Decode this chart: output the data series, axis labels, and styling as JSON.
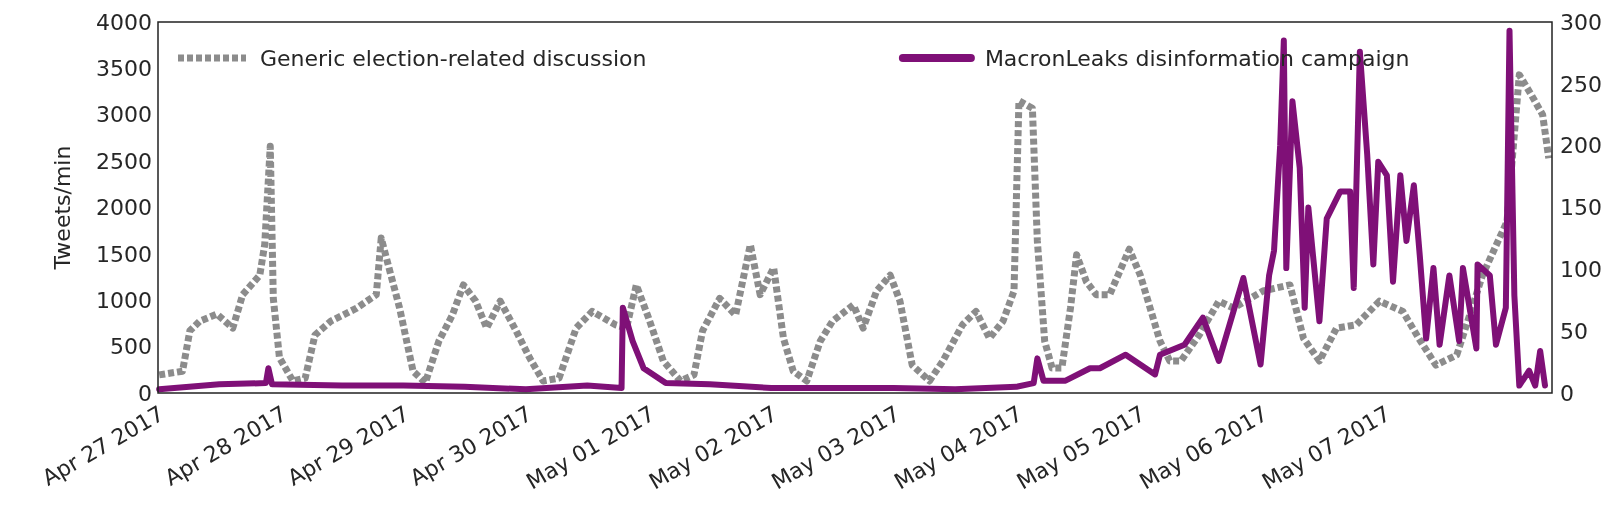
{
  "chart_data": {
    "type": "line",
    "ylabel": "Tweets/min",
    "legend": "top",
    "grid": false,
    "xlim": [
      "2017-04-27T00:00",
      "2017-05-08T08:48"
    ],
    "xticks": [
      {
        "value": "2017-04-27",
        "label": "Apr 27 2017"
      },
      {
        "value": "2017-04-28",
        "label": "Apr 28 2017"
      },
      {
        "value": "2017-04-29",
        "label": "Apr 29 2017"
      },
      {
        "value": "2017-04-30",
        "label": "Apr 30 2017"
      },
      {
        "value": "2017-05-01",
        "label": "May 01 2017"
      },
      {
        "value": "2017-05-02",
        "label": "May 02 2017"
      },
      {
        "value": "2017-05-03",
        "label": "May 03 2017"
      },
      {
        "value": "2017-05-04",
        "label": "May 04 2017"
      },
      {
        "value": "2017-05-05",
        "label": "May 05 2017"
      },
      {
        "value": "2017-05-06",
        "label": "May 06 2017"
      },
      {
        "value": "2017-05-07",
        "label": "May 07 2017"
      }
    ],
    "ylim": [
      0,
      4000
    ],
    "yticks": [
      0,
      500,
      1000,
      1500,
      2000,
      2500,
      3000,
      3500,
      4000
    ],
    "y2lim": [
      0,
      300
    ],
    "y2ticks": [
      0,
      50,
      100,
      150,
      200,
      250,
      300
    ],
    "series": [
      {
        "name": "Generic election-related discussion",
        "color": "#8c8c8c",
        "line_style": "dotted",
        "x": [
          "2017-04-27T00:14",
          "2017-04-27T04:48",
          "2017-04-27T06:14",
          "2017-04-27T08:10",
          "2017-04-27T11:31",
          "2017-04-27T14:38",
          "2017-04-27T16:34",
          "2017-04-27T19:55",
          "2017-04-27T20:53",
          "2017-04-27T21:58",
          "2017-04-27T22:34",
          "2017-04-27T23:46",
          "2017-04-28T02:24",
          "2017-04-28T04:48",
          "2017-04-28T06:43",
          "2017-04-28T09:50",
          "2017-04-28T14:53",
          "2017-04-28T18:43",
          "2017-04-28T19:41",
          "2017-04-28T21:22",
          "2017-04-28T23:17",
          "2017-04-29T01:55",
          "2017-04-29T04:19",
          "2017-04-29T06:58",
          "2017-04-29T09:36",
          "2017-04-29T11:46",
          "2017-04-29T14:10",
          "2017-04-29T16:19",
          "2017-04-29T18:58",
          "2017-04-29T22:05",
          "2017-04-30T00:43",
          "2017-04-30T03:22",
          "2017-04-30T06:29",
          "2017-04-30T09:50",
          "2017-04-30T12:58",
          "2017-04-30T17:31",
          "2017-04-30T19:41",
          "2017-04-30T21:36",
          "2017-05-01T00:00",
          "2017-05-01T02:53",
          "2017-05-01T06:14",
          "2017-05-01T08:53",
          "2017-05-01T10:34",
          "2017-05-01T13:55",
          "2017-05-01T17:02",
          "2017-05-01T19:55",
          "2017-05-01T21:50",
          "2017-05-02T00:29",
          "2017-05-02T02:24",
          "2017-05-02T04:19",
          "2017-05-02T06:58",
          "2017-05-02T09:36",
          "2017-05-02T12:00",
          "2017-05-02T16:05",
          "2017-05-02T18:00",
          "2017-05-02T20:38",
          "2017-05-02T23:17",
          "2017-05-03T01:12",
          "2017-05-03T03:36",
          "2017-05-03T06:58",
          "2017-05-03T09:36",
          "2017-05-03T13:26",
          "2017-05-03T16:05",
          "2017-05-03T18:43",
          "2017-05-03T21:22",
          "2017-05-03T23:31",
          "2017-05-04T00:29",
          "2017-05-04T03:07",
          "2017-05-04T04:05",
          "2017-05-04T05:31",
          "2017-05-04T06:58",
          "2017-05-04T08:53",
          "2017-05-04T10:34",
          "2017-05-04T11:46",
          "2017-05-04T13:41",
          "2017-05-04T15:36",
          "2017-05-04T18:14",
          "2017-05-04T22:05",
          "2017-05-05T00:14",
          "2017-05-05T04:05",
          "2017-05-05T06:00",
          "2017-05-05T08:10",
          "2017-05-05T11:46",
          "2017-05-05T15:36",
          "2017-05-05T18:29",
          "2017-05-06T00:14",
          "2017-05-06T05:31",
          "2017-05-06T08:10",
          "2017-05-06T11:17",
          "2017-05-06T14:38",
          "2017-05-06T18:29",
          "2017-05-06T23:02",
          "2017-05-07T03:36",
          "2017-05-07T06:43",
          "2017-05-07T10:05",
          "2017-05-07T14:10",
          "2017-05-07T19:12",
          "2017-05-08T00:00",
          "2017-05-08T02:24",
          "2017-05-08T04:48",
          "2017-05-08T06:58",
          "2017-05-08T08:10"
        ],
        "values": [
          195,
          235,
          670,
          775,
          850,
          700,
          1060,
          1270,
          1600,
          2660,
          1020,
          380,
          130,
          160,
          625,
          775,
          915,
          1060,
          1670,
          1315,
          915,
          235,
          110,
          560,
          840,
          1165,
          990,
          700,
          990,
          670,
          380,
          130,
          160,
          700,
          880,
          735,
          700,
          1165,
          810,
          345,
          130,
          195,
          670,
          1020,
          840,
          1600,
          1060,
          1350,
          590,
          235,
          130,
          560,
          775,
          950,
          700,
          1100,
          1270,
          990,
          300,
          130,
          345,
          735,
          880,
          590,
          775,
          1100,
          3150,
          3070,
          1640,
          560,
          270,
          270,
          915,
          1490,
          1200,
          1060,
          1060,
          1550,
          1270,
          560,
          345,
          345,
          625,
          990,
          915,
          1100,
          1165,
          590,
          345,
          700,
          735,
          990,
          880,
          590,
          300,
          410,
          1270,
          1850,
          3430,
          3210,
          3000,
          2530
        ]
      },
      {
        "name": "MacronLeaks disinformation campaign",
        "color": "#7f1077",
        "line_style": "solid",
        "axis": "y2",
        "x": [
          "2017-04-27T00:14",
          "2017-04-27T12:00",
          "2017-04-27T21:07",
          "2017-04-27T21:36",
          "2017-04-27T22:19",
          "2017-04-28T12:00",
          "2017-04-29T00:00",
          "2017-04-29T12:00",
          "2017-04-30T00:00",
          "2017-04-30T12:00",
          "2017-04-30T18:43",
          "2017-04-30T18:58",
          "2017-04-30T20:53",
          "2017-04-30T23:02",
          "2017-05-01T03:22",
          "2017-05-01T12:00",
          "2017-05-02T00:00",
          "2017-05-02T12:00",
          "2017-05-03T00:00",
          "2017-05-03T12:00",
          "2017-05-04T00:00",
          "2017-05-04T03:22",
          "2017-05-04T04:05",
          "2017-05-04T05:17",
          "2017-05-04T09:36",
          "2017-05-04T14:24",
          "2017-05-04T16:19",
          "2017-05-04T21:22",
          "2017-05-05T03:07",
          "2017-05-05T04:05",
          "2017-05-05T08:53",
          "2017-05-05T12:29",
          "2017-05-05T15:36",
          "2017-05-05T20:24",
          "2017-05-05T23:46",
          "2017-05-06T01:26",
          "2017-05-06T02:24",
          "2017-05-06T03:36",
          "2017-05-06T04:19",
          "2017-05-06T04:48",
          "2017-05-06T06:00",
          "2017-05-06T07:26",
          "2017-05-06T08:24",
          "2017-05-06T09:07",
          "2017-05-06T11:17",
          "2017-05-06T12:43",
          "2017-05-06T15:22",
          "2017-05-06T17:17",
          "2017-05-06T18:00",
          "2017-05-06T19:12",
          "2017-05-06T20:38",
          "2017-05-06T21:50",
          "2017-05-06T22:48",
          "2017-05-07T00:29",
          "2017-05-07T01:41",
          "2017-05-07T03:07",
          "2017-05-07T04:19",
          "2017-05-07T05:46",
          "2017-05-07T06:58",
          "2017-05-07T08:10",
          "2017-05-07T09:36",
          "2017-05-07T10:48",
          "2017-05-07T12:43",
          "2017-05-07T14:38",
          "2017-05-07T15:22",
          "2017-05-07T18:00",
          "2017-05-07T18:14",
          "2017-05-07T20:38",
          "2017-05-07T21:50",
          "2017-05-07T23:46",
          "2017-05-08T00:29",
          "2017-05-08T01:26",
          "2017-05-08T02:24",
          "2017-05-08T04:19",
          "2017-05-08T05:31",
          "2017-05-08T06:29",
          "2017-05-08T07:26"
        ],
        "values": [
          3,
          7,
          8,
          20,
          7,
          6,
          6,
          5,
          3,
          6,
          4,
          69,
          42,
          20,
          8,
          7,
          4,
          4,
          4,
          3,
          5,
          8,
          28,
          10,
          10,
          20,
          20,
          31,
          15,
          31,
          39,
          61,
          26,
          93,
          23,
          95,
          115,
          200,
          285,
          101,
          236,
          182,
          69,
          150,
          58,
          141,
          163,
          163,
          85,
          276,
          193,
          104,
          187,
          176,
          90,
          176,
          123,
          168,
          109,
          44,
          101,
          39,
          95,
          42,
          101,
          36,
          104,
          95,
          39,
          69,
          293,
          79,
          6,
          18,
          6,
          34,
          6
        ]
      }
    ]
  }
}
